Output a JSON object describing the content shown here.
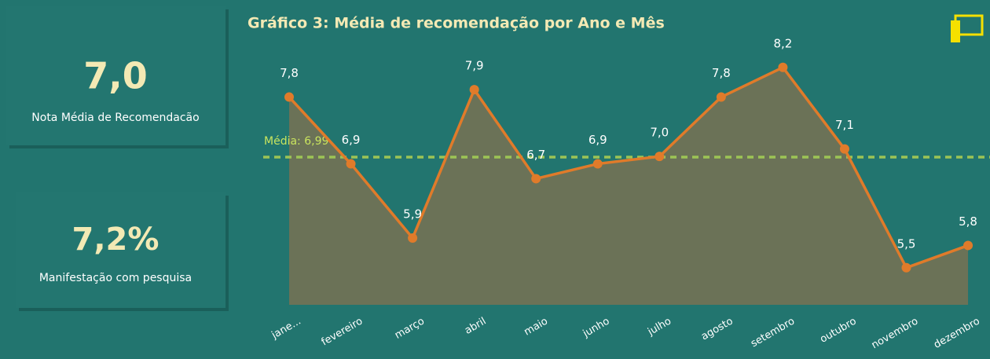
{
  "cards": [
    {
      "value": "7,0",
      "label": "Nota Média de Recomendacão"
    },
    {
      "value": "7,2%",
      "label": "Manifestação com pesquisa"
    }
  ],
  "chart_data": {
    "type": "area-line",
    "title": "Gráfico 3: Média de recomendação por Ano e Mês",
    "categories": [
      "jane...",
      "fevereiro",
      "março",
      "abril",
      "maio",
      "junho",
      "julho",
      "agosto",
      "setembro",
      "outubro",
      "novembro",
      "dezembro"
    ],
    "values": [
      7.8,
      6.9,
      5.9,
      7.9,
      6.7,
      6.9,
      7.0,
      7.8,
      8.2,
      7.1,
      5.5,
      5.8
    ],
    "value_labels": [
      "7,8",
      "6,9",
      "5,9",
      "7,9",
      "6,7",
      "6,9",
      "7,0",
      "7,8",
      "8,2",
      "7,1",
      "5,5",
      "5,8"
    ],
    "color": "#e07b2a",
    "area_color": "#6b7257",
    "average": {
      "value": 6.99,
      "label": "Média: 6,99",
      "color": "#9cc455"
    },
    "ylim": [
      5,
      8.6
    ]
  }
}
